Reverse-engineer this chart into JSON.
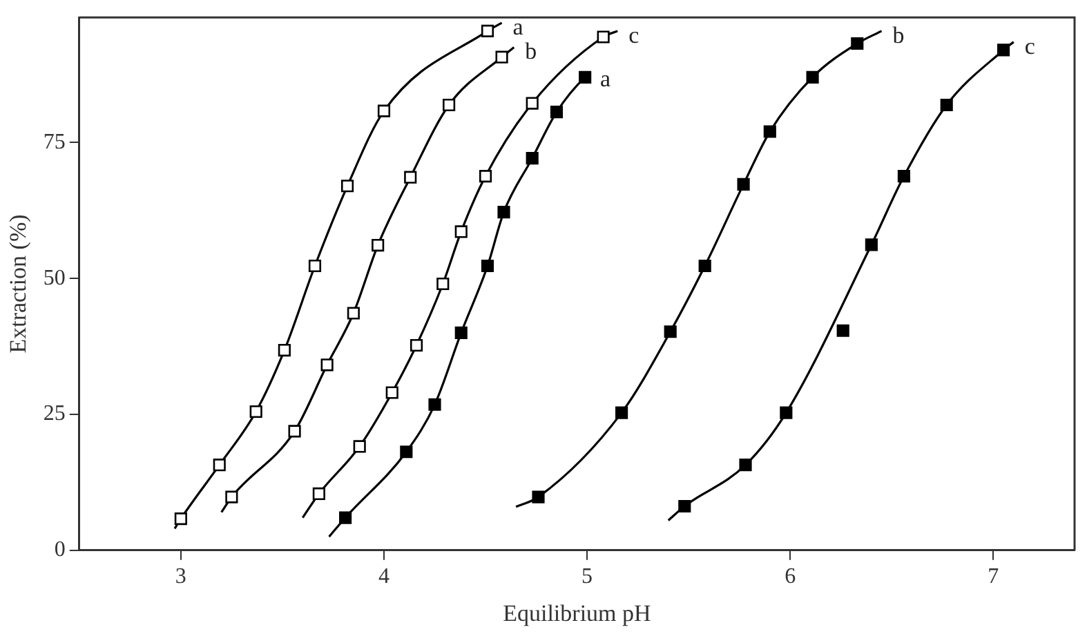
{
  "chart_data": {
    "type": "scatter",
    "xlabel": "Equilibrium pH",
    "ylabel": "Extraction (%)",
    "xlim": [
      2.5,
      7.4
    ],
    "ylim": [
      0,
      98
    ],
    "xticks": [
      3,
      4,
      5,
      6,
      7
    ],
    "yticks": [
      0,
      25,
      50,
      75
    ],
    "grid": false,
    "legend": false,
    "marker": "square",
    "series": [
      {
        "type": "line",
        "name": "a",
        "marker": "none",
        "color": "#000000",
        "x": [
          2.97,
          3.0,
          3.19,
          3.37,
          3.51,
          3.66,
          3.82,
          4.0,
          4.51,
          4.58
        ],
        "values": [
          4,
          5.8,
          15.7,
          25.5,
          36.8,
          52.3,
          67,
          80.8,
          95.5,
          97
        ]
      },
      {
        "type": "line",
        "name": "b",
        "marker": "none",
        "color": "#000000",
        "x": [
          3.2,
          3.25,
          3.56,
          3.72,
          3.85,
          3.97,
          4.13,
          4.32,
          4.58,
          4.64
        ],
        "values": [
          7,
          9.8,
          21.9,
          34.1,
          43.6,
          56.1,
          68.6,
          81.9,
          90.7,
          92.5
        ]
      },
      {
        "type": "line",
        "name": "c",
        "marker": "none",
        "color": "#000000",
        "x": [
          3.6,
          3.68,
          3.88,
          4.04,
          4.16,
          4.29,
          4.38,
          4.5,
          4.73,
          5.08,
          5.15
        ],
        "values": [
          6,
          10.4,
          19.1,
          29,
          37.7,
          49,
          58.6,
          68.8,
          82.2,
          94.4,
          95.5
        ]
      },
      {
        "type": "line",
        "name": "a",
        "marker": "none",
        "color": "#000000",
        "x": [
          3.73,
          3.81,
          4.11,
          4.25,
          4.38,
          4.51,
          4.59,
          4.73,
          4.85,
          4.99,
          5.01
        ],
        "values": [
          2.5,
          6,
          18.1,
          26.8,
          40,
          52.3,
          62.2,
          72.1,
          80.6,
          87,
          87.5
        ]
      },
      {
        "type": "line",
        "name": "b",
        "marker": "none",
        "color": "#000000",
        "x": [
          4.65,
          4.76,
          5.17,
          5.41,
          5.58,
          5.77,
          5.9,
          6.11,
          6.33,
          6.45
        ],
        "values": [
          8,
          9.8,
          25.3,
          40.2,
          52.3,
          67.3,
          77,
          87,
          93.2,
          95.5
        ]
      },
      {
        "type": "line",
        "name": "c",
        "marker": "none",
        "color": "#000000",
        "x": [
          5.4,
          5.48,
          5.78,
          5.98,
          6.4,
          6.56,
          6.77,
          7.05,
          7.1
        ],
        "values": [
          5.5,
          8.1,
          15.7,
          25.3,
          56.2,
          68.8,
          81.9,
          92,
          93.5
        ]
      },
      {
        "color": "#ffffff",
        "x": [
          3.0,
          3.19,
          3.37,
          3.51,
          3.66,
          3.82,
          4.0,
          4.51
        ],
        "values": [
          5.8,
          15.7,
          25.5,
          36.8,
          52.3,
          67,
          80.8,
          95.5
        ]
      },
      {
        "color": "#ffffff",
        "x": [
          3.25,
          3.56,
          3.72,
          3.85,
          3.97,
          4.13,
          4.32,
          4.58
        ],
        "values": [
          9.8,
          21.9,
          34.1,
          43.6,
          56.1,
          68.6,
          81.9,
          90.7
        ]
      },
      {
        "color": "#ffffff",
        "x": [
          3.68,
          3.88,
          4.04,
          4.16,
          4.29,
          4.38,
          4.5,
          4.73,
          5.08
        ],
        "values": [
          10.4,
          19.1,
          29,
          37.7,
          49,
          58.6,
          68.8,
          82.2,
          94.4
        ]
      },
      {
        "color": "#000000",
        "x": [
          3.81,
          4.11,
          4.25,
          4.38,
          4.51,
          4.59,
          4.73,
          4.85,
          4.99
        ],
        "values": [
          6,
          18.1,
          26.8,
          40,
          52.3,
          62.2,
          72.1,
          80.6,
          87
        ]
      },
      {
        "color": "#000000",
        "x": [
          4.76,
          5.17,
          5.41,
          5.58,
          5.77,
          5.9,
          6.11,
          6.33
        ],
        "values": [
          9.8,
          25.3,
          40.2,
          52.3,
          67.3,
          77,
          87,
          93.2
        ]
      },
      {
        "color": "#000000",
        "x": [
          5.48,
          5.78,
          5.98,
          6.26,
          6.4,
          6.56,
          6.77,
          7.05
        ],
        "values": [
          8.1,
          15.7,
          25.3,
          40.4,
          56.2,
          68.8,
          81.9,
          92
        ]
      }
    ]
  }
}
